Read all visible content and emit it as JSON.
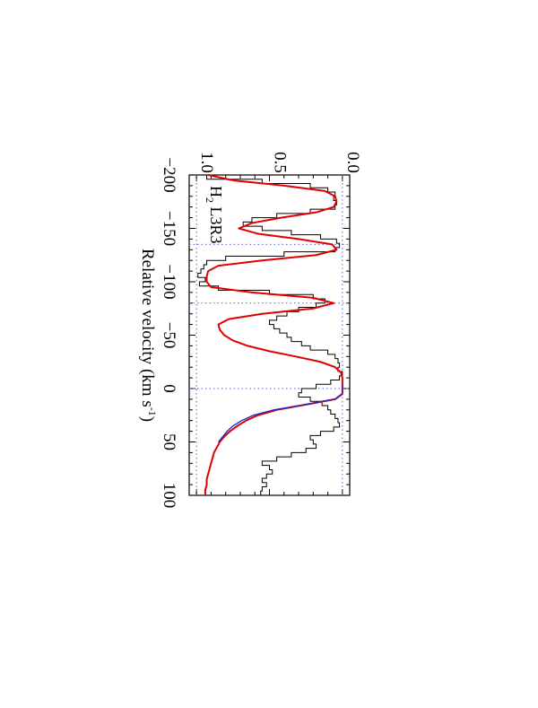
{
  "chart_data": {
    "type": "line",
    "orientation": "rotated 90° clockwise (velocity runs top-to-bottom, flux increases to the left)",
    "panel_label": "H₂ L3R3",
    "panel_label_main": "H",
    "panel_label_sub": "2",
    "panel_label_rest": " L3R3",
    "xlabel": "Relative velocity (km s⁻¹)",
    "xlabel_main": "Relative velocity (km s",
    "xlabel_sup": "-1",
    "xlabel_end": ")",
    "ylabel": "",
    "xlim": [
      -200,
      100
    ],
    "ylim": [
      -0.05,
      1.05
    ],
    "xticks": [
      {
        "value": -200,
        "label": "−200"
      },
      {
        "value": -150,
        "label": "−150"
      },
      {
        "value": -100,
        "label": "−100"
      },
      {
        "value": -50,
        "label": "−50"
      },
      {
        "value": 0,
        "label": "0"
      },
      {
        "value": 50,
        "label": "50"
      },
      {
        "value": 100,
        "label": "100"
      }
    ],
    "yticks": [
      {
        "value": 0.0,
        "label": "0.0"
      },
      {
        "value": 0.5,
        "label": "0.5"
      },
      {
        "value": 1.0,
        "label": "1.0"
      }
    ],
    "reference_lines": {
      "flux_levels": [
        0.0,
        1.0
      ],
      "velocities": [
        -135,
        -80,
        0
      ]
    },
    "colors": {
      "data": "#000000",
      "model_total": "#e00000",
      "model_component": "#2020d0",
      "reference": "#5a5ad8",
      "frame": "#000000"
    },
    "series": [
      {
        "role": "data",
        "style": "histogram",
        "x": [
          -200,
          -196,
          -192,
          -188,
          -184,
          -180,
          -176,
          -172,
          -168,
          -164,
          -160,
          -156,
          -152,
          -148,
          -144,
          -140,
          -136,
          -132,
          -128,
          -124,
          -120,
          -116,
          -112,
          -108,
          -104,
          -100,
          -96,
          -92,
          -88,
          -84,
          -80,
          -76,
          -72,
          -68,
          -64,
          -60,
          -56,
          -52,
          -48,
          -44,
          -40,
          -36,
          -32,
          -28,
          -24,
          -20,
          -16,
          -12,
          -8,
          -4,
          0,
          4,
          8,
          12,
          16,
          20,
          24,
          28,
          32,
          36,
          40,
          44,
          48,
          52,
          56,
          60,
          64,
          68,
          72,
          76,
          80,
          84,
          88,
          92,
          96,
          100
        ],
        "y": [
          0.93,
          0.55,
          0.22,
          0.1,
          0.05,
          0.06,
          0.04,
          0.05,
          0.22,
          0.45,
          0.62,
          0.68,
          0.55,
          0.35,
          0.15,
          0.04,
          0.02,
          0.05,
          0.4,
          0.8,
          0.93,
          0.95,
          0.97,
          0.99,
          0.94,
          0.98,
          0.85,
          0.5,
          0.2,
          0.12,
          0.18,
          0.3,
          0.38,
          0.45,
          0.5,
          0.47,
          0.43,
          0.38,
          0.35,
          0.28,
          0.22,
          0.1,
          0.05,
          0.03,
          0.02,
          0.03,
          0.0,
          0.02,
          0.08,
          0.18,
          0.28,
          0.3,
          0.22,
          0.14,
          0.1,
          0.08,
          0.05,
          0.03,
          0.02,
          0.06,
          0.15,
          0.22,
          0.2,
          0.18,
          0.25,
          0.35,
          0.45,
          0.55,
          0.5,
          0.48,
          0.52,
          0.55,
          0.52,
          0.55,
          0.56,
          0.57
        ]
      },
      {
        "role": "model_total",
        "style": "line",
        "x": [
          -200,
          -195,
          -190,
          -185,
          -180,
          -175,
          -170,
          -165,
          -160,
          -155,
          -150,
          -145,
          -140,
          -135,
          -130,
          -125,
          -120,
          -115,
          -110,
          -105,
          -100,
          -95,
          -90,
          -85,
          -80,
          -75,
          -70,
          -65,
          -60,
          -55,
          -50,
          -45,
          -40,
          -35,
          -30,
          -25,
          -20,
          -15,
          -10,
          -5,
          0,
          5,
          10,
          15,
          20,
          25,
          30,
          35,
          40,
          45,
          50,
          55,
          60,
          65,
          70,
          75,
          80,
          85,
          90,
          95,
          100
        ],
        "y": [
          0.92,
          0.75,
          0.4,
          0.12,
          0.05,
          0.04,
          0.06,
          0.18,
          0.42,
          0.62,
          0.71,
          0.58,
          0.3,
          0.07,
          0.04,
          0.18,
          0.55,
          0.85,
          0.92,
          0.93,
          0.93,
          0.9,
          0.62,
          0.2,
          0.06,
          0.2,
          0.55,
          0.78,
          0.85,
          0.84,
          0.81,
          0.75,
          0.65,
          0.5,
          0.32,
          0.15,
          0.05,
          0.01,
          0.0,
          0.0,
          0.0,
          0.0,
          0.05,
          0.25,
          0.45,
          0.58,
          0.66,
          0.72,
          0.77,
          0.81,
          0.84,
          0.86,
          0.88,
          0.89,
          0.9,
          0.91,
          0.92,
          0.93,
          0.93,
          0.94,
          0.94
        ]
      },
      {
        "role": "model_component",
        "style": "line",
        "x": [
          -4,
          0,
          5,
          10,
          15,
          20,
          25,
          30,
          35,
          40,
          45,
          50
        ],
        "y": [
          0.0,
          0.0,
          0.0,
          0.05,
          0.26,
          0.47,
          0.61,
          0.69,
          0.75,
          0.79,
          0.82,
          0.85
        ]
      }
    ]
  }
}
